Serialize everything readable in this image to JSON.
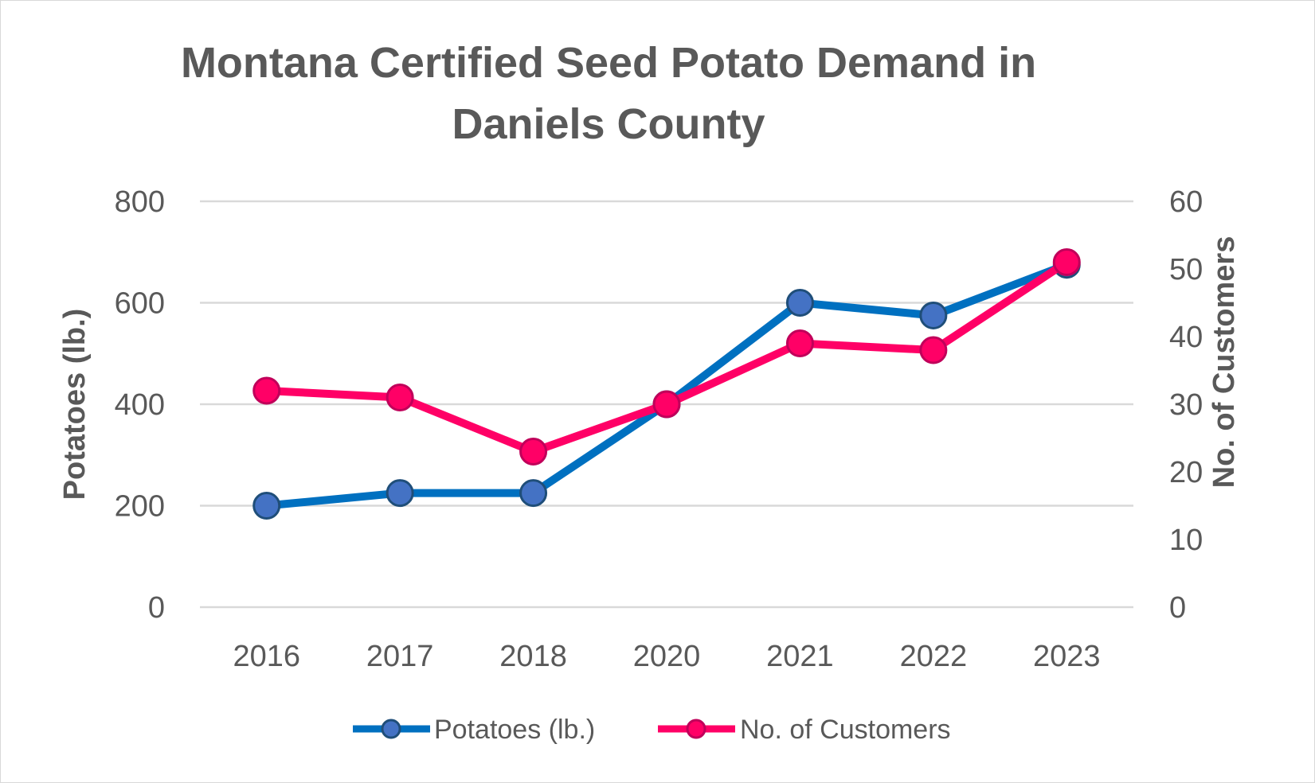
{
  "chart_data": {
    "type": "line",
    "title_lines": [
      "Montana Certified Seed Potato Demand in",
      "Daniels County"
    ],
    "categories": [
      "2016",
      "2017",
      "2018",
      "2020",
      "2021",
      "2022",
      "2023"
    ],
    "series": [
      {
        "name": "Potatoes (lb.)",
        "axis": "left",
        "values": [
          200,
          225,
          225,
          400,
          600,
          575,
          675
        ],
        "color": "#0070C0",
        "marker_fill": "#4472C4",
        "marker_edge": "#1F4E79"
      },
      {
        "name": "No. of Customers",
        "axis": "right",
        "values": [
          32,
          31,
          23,
          30,
          39,
          38,
          51
        ],
        "color": "#FF0066",
        "marker_fill": "#FF0066",
        "marker_edge": "#C0005A"
      }
    ],
    "ylabel": "Potatoes (lb.)",
    "y2label": "No. of Customers",
    "ylim": [
      0,
      800
    ],
    "y2lim": [
      0,
      60
    ],
    "yticks": [
      "0",
      "200",
      "400",
      "600",
      "800"
    ],
    "y2ticks": [
      "0",
      "10",
      "20",
      "30",
      "40",
      "50",
      "60"
    ],
    "grid": true,
    "legend": "bottom"
  }
}
